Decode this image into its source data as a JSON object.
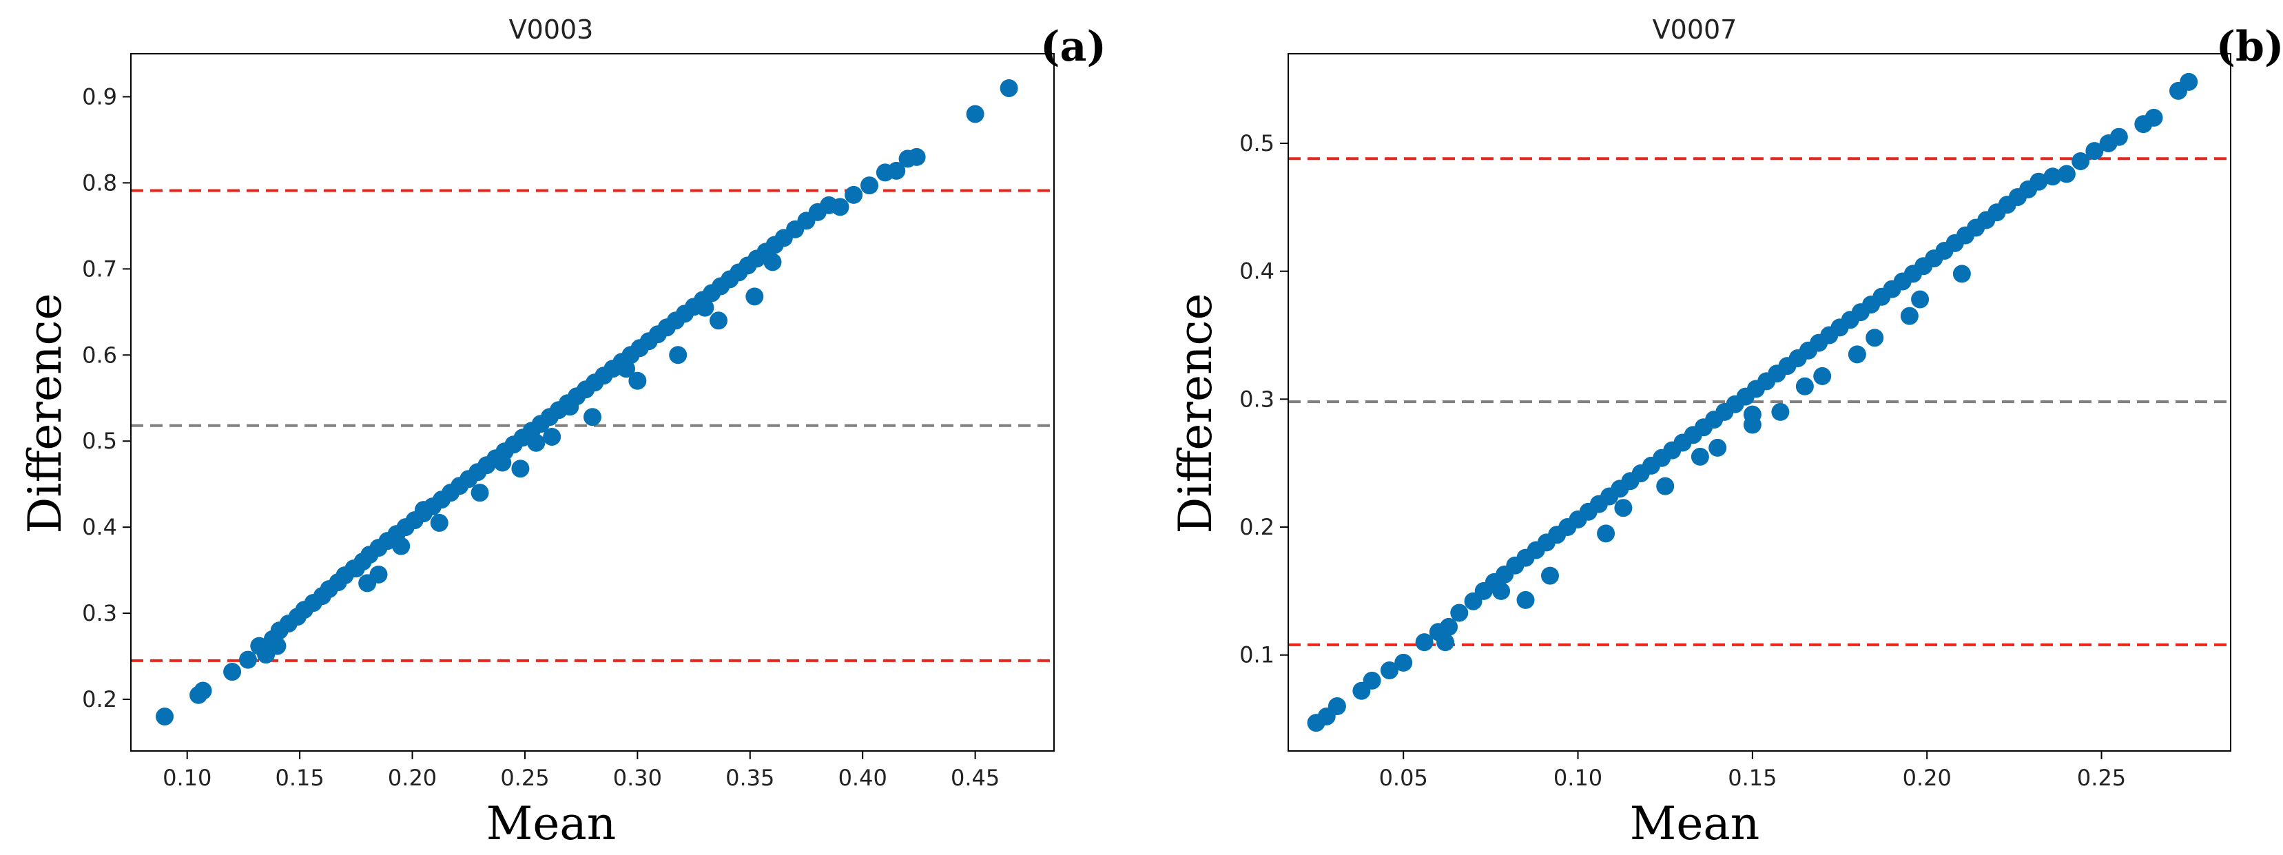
{
  "chart_data": [
    {
      "type": "scatter",
      "panel_label": "(a)",
      "title": "V0003",
      "xlabel": "Mean",
      "ylabel": "Difference",
      "xlim": [
        0.075,
        0.485
      ],
      "ylim": [
        0.14,
        0.95
      ],
      "xticks": [
        0.1,
        0.15,
        0.2,
        0.25,
        0.3,
        0.35,
        0.4,
        0.45
      ],
      "xtick_labels": [
        "0.10",
        "0.15",
        "0.20",
        "0.25",
        "0.30",
        "0.35",
        "0.40",
        "0.45"
      ],
      "yticks": [
        0.2,
        0.3,
        0.4,
        0.5,
        0.6,
        0.7,
        0.8,
        0.9
      ],
      "ytick_labels": [
        "0.2",
        "0.3",
        "0.4",
        "0.5",
        "0.6",
        "0.7",
        "0.8",
        "0.9"
      ],
      "hlines": [
        {
          "name": "upper-limit",
          "y": 0.791,
          "color": "#e8251b"
        },
        {
          "name": "mean-difference",
          "y": 0.518,
          "color": "#808080"
        },
        {
          "name": "lower-limit",
          "y": 0.245,
          "color": "#e8251b"
        }
      ],
      "point_color": "#0672b5",
      "points": {
        "x": [
          0.09,
          0.105,
          0.107,
          0.12,
          0.127,
          0.132,
          0.135,
          0.138,
          0.141,
          0.145,
          0.149,
          0.152,
          0.156,
          0.16,
          0.163,
          0.167,
          0.17,
          0.174,
          0.178,
          0.181,
          0.185,
          0.189,
          0.193,
          0.197,
          0.201,
          0.205,
          0.209,
          0.213,
          0.217,
          0.221,
          0.225,
          0.229,
          0.233,
          0.237,
          0.241,
          0.245,
          0.249,
          0.253,
          0.257,
          0.261,
          0.265,
          0.269,
          0.273,
          0.277,
          0.281,
          0.285,
          0.289,
          0.293,
          0.297,
          0.301,
          0.305,
          0.309,
          0.313,
          0.317,
          0.321,
          0.325,
          0.329,
          0.333,
          0.337,
          0.341,
          0.345,
          0.349,
          0.353,
          0.357,
          0.361,
          0.365,
          0.37,
          0.375,
          0.38,
          0.385,
          0.39,
          0.396,
          0.403,
          0.41,
          0.415,
          0.42,
          0.424,
          0.45,
          0.465,
          0.18,
          0.185,
          0.195,
          0.212,
          0.23,
          0.248,
          0.262,
          0.28,
          0.3,
          0.318,
          0.336,
          0.352,
          0.14,
          0.175,
          0.205,
          0.24,
          0.27,
          0.295,
          0.33,
          0.36,
          0.255
        ],
        "y": [
          0.18,
          0.205,
          0.21,
          0.232,
          0.246,
          0.262,
          0.252,
          0.27,
          0.28,
          0.288,
          0.296,
          0.304,
          0.312,
          0.32,
          0.328,
          0.336,
          0.344,
          0.352,
          0.36,
          0.368,
          0.376,
          0.384,
          0.392,
          0.4,
          0.408,
          0.416,
          0.424,
          0.432,
          0.44,
          0.448,
          0.456,
          0.464,
          0.472,
          0.48,
          0.488,
          0.496,
          0.504,
          0.512,
          0.52,
          0.528,
          0.536,
          0.544,
          0.552,
          0.56,
          0.568,
          0.576,
          0.584,
          0.592,
          0.6,
          0.608,
          0.616,
          0.624,
          0.632,
          0.64,
          0.648,
          0.656,
          0.664,
          0.672,
          0.68,
          0.688,
          0.696,
          0.704,
          0.712,
          0.72,
          0.728,
          0.736,
          0.746,
          0.756,
          0.766,
          0.774,
          0.772,
          0.786,
          0.797,
          0.812,
          0.814,
          0.828,
          0.83,
          0.88,
          0.91,
          0.335,
          0.345,
          0.378,
          0.405,
          0.44,
          0.468,
          0.505,
          0.528,
          0.57,
          0.6,
          0.64,
          0.668,
          0.262,
          0.352,
          0.42,
          0.475,
          0.54,
          0.584,
          0.655,
          0.708,
          0.498
        ]
      }
    },
    {
      "type": "scatter",
      "panel_label": "(b)",
      "title": "V0007",
      "xlabel": "Mean",
      "ylabel": "Difference",
      "xlim": [
        0.017,
        0.287
      ],
      "ylim": [
        0.025,
        0.57
      ],
      "xticks": [
        0.05,
        0.1,
        0.15,
        0.2,
        0.25
      ],
      "xtick_labels": [
        "0.05",
        "0.10",
        "0.15",
        "0.20",
        "0.25"
      ],
      "yticks": [
        0.1,
        0.2,
        0.3,
        0.4,
        0.5
      ],
      "ytick_labels": [
        "0.1",
        "0.2",
        "0.3",
        "0.4",
        "0.5"
      ],
      "hlines": [
        {
          "name": "upper-limit",
          "y": 0.488,
          "color": "#e8251b"
        },
        {
          "name": "mean-difference",
          "y": 0.298,
          "color": "#808080"
        },
        {
          "name": "lower-limit",
          "y": 0.108,
          "color": "#e8251b"
        }
      ],
      "point_color": "#0672b5",
      "points": {
        "x": [
          0.025,
          0.028,
          0.031,
          0.038,
          0.041,
          0.046,
          0.05,
          0.056,
          0.06,
          0.063,
          0.066,
          0.07,
          0.073,
          0.076,
          0.079,
          0.082,
          0.085,
          0.088,
          0.091,
          0.094,
          0.097,
          0.1,
          0.103,
          0.106,
          0.109,
          0.112,
          0.115,
          0.118,
          0.121,
          0.124,
          0.127,
          0.13,
          0.133,
          0.136,
          0.139,
          0.142,
          0.145,
          0.148,
          0.151,
          0.154,
          0.157,
          0.16,
          0.163,
          0.166,
          0.169,
          0.172,
          0.175,
          0.178,
          0.181,
          0.184,
          0.187,
          0.19,
          0.193,
          0.196,
          0.199,
          0.202,
          0.205,
          0.208,
          0.211,
          0.214,
          0.217,
          0.22,
          0.223,
          0.226,
          0.229,
          0.232,
          0.236,
          0.24,
          0.244,
          0.248,
          0.252,
          0.255,
          0.262,
          0.265,
          0.272,
          0.275,
          0.085,
          0.092,
          0.108,
          0.125,
          0.14,
          0.158,
          0.17,
          0.185,
          0.198,
          0.21,
          0.062,
          0.078,
          0.113,
          0.135,
          0.15,
          0.165,
          0.18,
          0.195,
          0.15
        ],
        "y": [
          0.047,
          0.052,
          0.06,
          0.072,
          0.08,
          0.088,
          0.094,
          0.11,
          0.118,
          0.122,
          0.133,
          0.142,
          0.15,
          0.157,
          0.163,
          0.17,
          0.176,
          0.182,
          0.188,
          0.194,
          0.2,
          0.206,
          0.212,
          0.218,
          0.224,
          0.23,
          0.236,
          0.242,
          0.248,
          0.254,
          0.26,
          0.266,
          0.272,
          0.278,
          0.284,
          0.29,
          0.296,
          0.302,
          0.308,
          0.314,
          0.32,
          0.326,
          0.332,
          0.338,
          0.344,
          0.35,
          0.356,
          0.362,
          0.368,
          0.374,
          0.38,
          0.386,
          0.392,
          0.398,
          0.404,
          0.41,
          0.416,
          0.422,
          0.428,
          0.434,
          0.44,
          0.446,
          0.452,
          0.458,
          0.464,
          0.47,
          0.474,
          0.476,
          0.486,
          0.494,
          0.5,
          0.505,
          0.515,
          0.52,
          0.541,
          0.548,
          0.143,
          0.162,
          0.195,
          0.232,
          0.262,
          0.29,
          0.318,
          0.348,
          0.378,
          0.398,
          0.11,
          0.15,
          0.215,
          0.255,
          0.28,
          0.31,
          0.335,
          0.365,
          0.288
        ]
      }
    }
  ]
}
